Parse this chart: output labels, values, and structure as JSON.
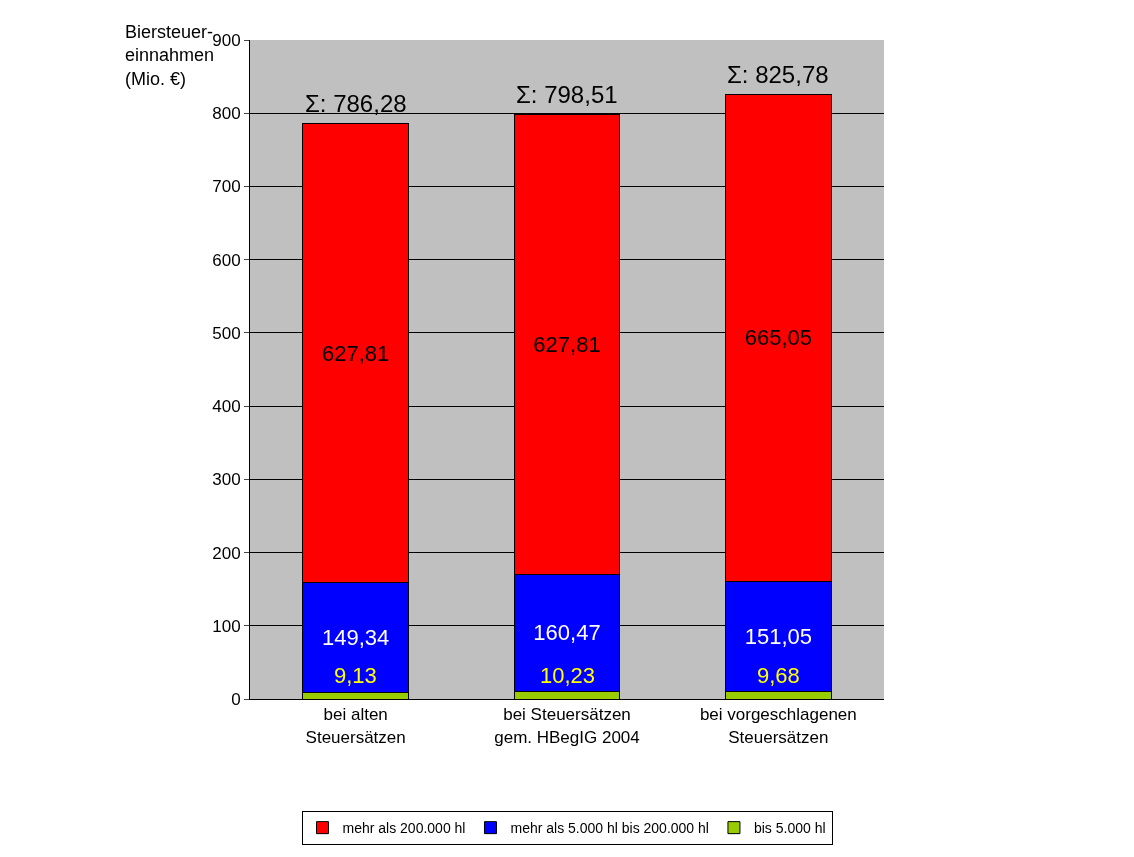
{
  "chart_data": {
    "type": "bar",
    "stacked": true,
    "ylabel": "Biersteuer-\neinnahmen\n(Mio. €)",
    "categories": [
      "bei alten\nSteuersätzen",
      "bei Steuersätzen\ngem. HBegIG 2004",
      "bei vorgeschlagenen\nSteuersätzen"
    ],
    "series": [
      {
        "name": "bis 5.000 hl",
        "color": "#99cc00",
        "values": [
          9.13,
          10.23,
          9.68
        ],
        "value_labels": [
          "9,13",
          "10,23",
          "9,68"
        ]
      },
      {
        "name": "mehr als 5.000 hl bis 200.000 hl",
        "color": "#0000ff",
        "values": [
          149.34,
          160.47,
          151.05
        ],
        "value_labels": [
          "149,34",
          "160,47",
          "151,05"
        ]
      },
      {
        "name": "mehr als 200.000 hl",
        "color": "#ff0000",
        "values": [
          627.81,
          627.81,
          665.05
        ],
        "value_labels": [
          "627,81",
          "627,81",
          "665,05"
        ]
      }
    ],
    "totals": [
      "Σ: 786,28",
      "Σ: 798,51",
      "Σ: 825,78"
    ],
    "ylim": [
      0,
      900
    ],
    "yticks": [
      0,
      100,
      200,
      300,
      400,
      500,
      600,
      700,
      800,
      900
    ],
    "grid": "y",
    "legend": "bottom"
  }
}
